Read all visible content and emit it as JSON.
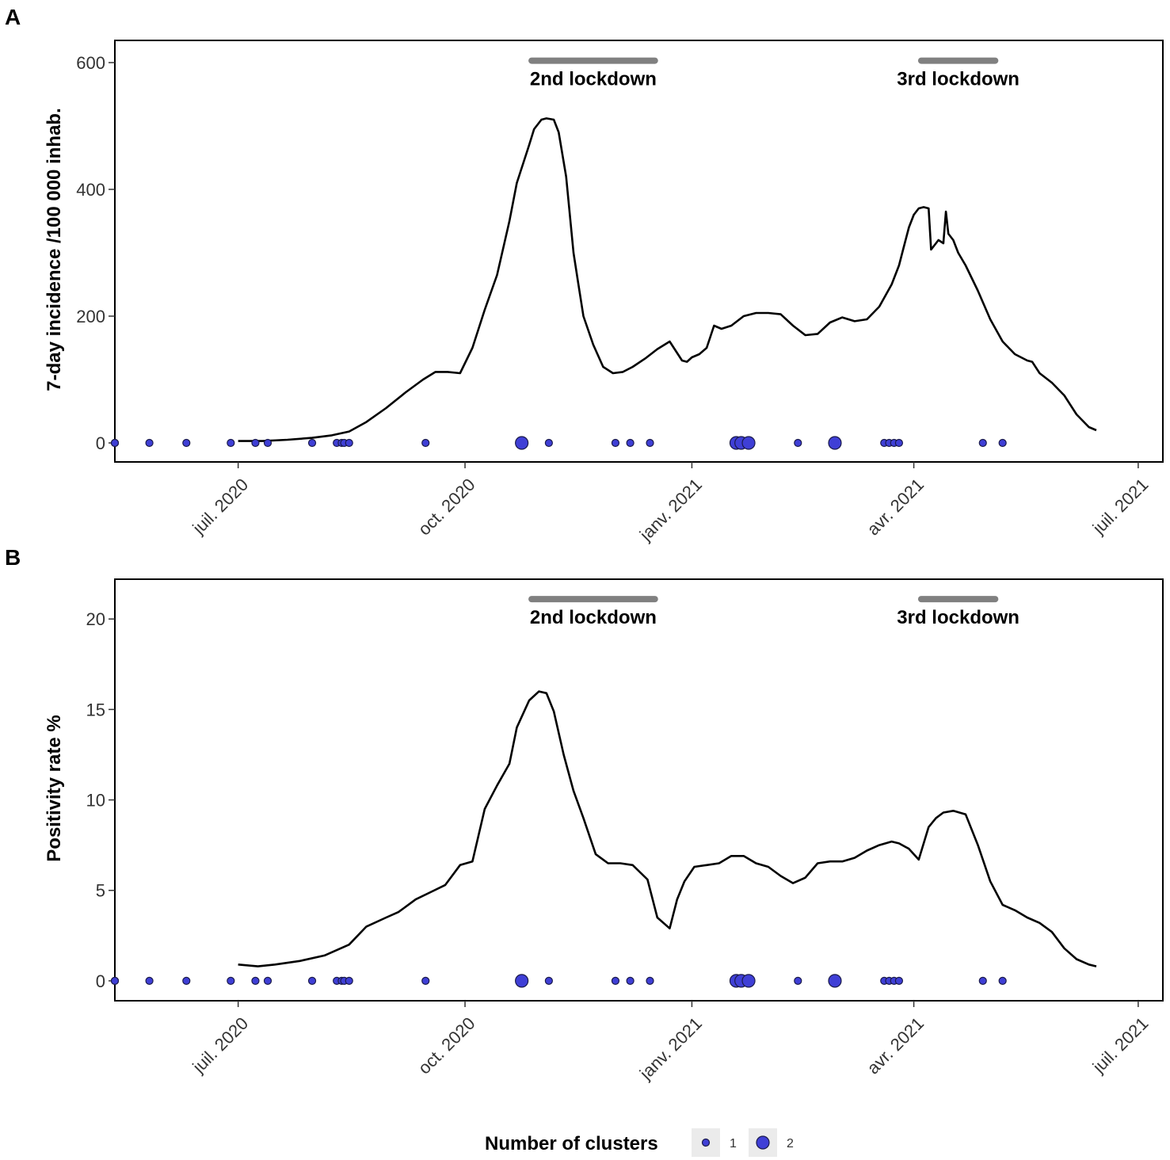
{
  "panels": {
    "a": {
      "letter": "A"
    },
    "b": {
      "letter": "B"
    }
  },
  "colors": {
    "line": "#000000",
    "cluster_fill": "#3f3fd6",
    "cluster_stroke": "#1a1a4a",
    "lockdown_bar": "#808080",
    "legend_key_bg": "#ebebeb"
  },
  "legend": {
    "title": "Number of clusters",
    "items": [
      {
        "label": "1",
        "size": 1
      },
      {
        "label": "2",
        "size": 2
      }
    ]
  },
  "chart_data": [
    {
      "type": "line",
      "panel": "A",
      "title": "",
      "xlabel": "",
      "ylabel": "7-day incidence /100 000 inhab.",
      "ylim": [
        -30,
        635
      ],
      "yticks": [
        0,
        200,
        400,
        600
      ],
      "ytick_labels": [
        "0",
        "200",
        "400",
        "600"
      ],
      "xlim_days": [
        -50,
        375
      ],
      "x_origin": "2020-06-30",
      "xticks_days": [
        0,
        92,
        184,
        274,
        365
      ],
      "xtick_labels": [
        "juil. 2020",
        "oct. 2020",
        "janv. 2021",
        "avr. 2021",
        "juil. 2021"
      ],
      "grid": false,
      "lockdowns": [
        {
          "label": "2nd lockdown",
          "start_day": 119,
          "end_day": 169,
          "y": 603
        },
        {
          "label": "3rd lockdown",
          "start_day": 277,
          "end_day": 307,
          "y": 603
        }
      ],
      "series": [
        {
          "name": "7-day incidence",
          "x": [
            0,
            10,
            20,
            30,
            38,
            45,
            52,
            60,
            68,
            75,
            80,
            85,
            90,
            95,
            100,
            105,
            110,
            113,
            118,
            120,
            123,
            125,
            128,
            130,
            133,
            136,
            138,
            140,
            144,
            148,
            152,
            156,
            160,
            165,
            170,
            175,
            180,
            182,
            184,
            187,
            190,
            193,
            196,
            200,
            205,
            210,
            215,
            220,
            225,
            230,
            235,
            240,
            245,
            250,
            255,
            260,
            265,
            268,
            270,
            272,
            274,
            276,
            278,
            280,
            281,
            282,
            284,
            286,
            287,
            288,
            290,
            292,
            295,
            300,
            305,
            310,
            315,
            320,
            322,
            325,
            330,
            335,
            340,
            345,
            348
          ],
          "y": [
            3,
            3,
            5,
            8,
            12,
            18,
            33,
            55,
            80,
            100,
            112,
            112,
            110,
            150,
            210,
            265,
            350,
            410,
            470,
            495,
            510,
            512,
            510,
            490,
            420,
            300,
            250,
            200,
            155,
            120,
            110,
            112,
            120,
            133,
            148,
            160,
            130,
            128,
            135,
            140,
            150,
            185,
            180,
            185,
            200,
            205,
            205,
            203,
            185,
            170,
            172,
            190,
            198,
            192,
            195,
            215,
            250,
            280,
            310,
            340,
            360,
            370,
            372,
            370,
            305,
            310,
            320,
            315,
            365,
            330,
            320,
            300,
            280,
            240,
            195,
            160,
            140,
            130,
            128,
            110,
            95,
            75,
            45,
            25,
            20
          ]
        },
        {
          "name": "Number of clusters",
          "kind": "points",
          "x": [
            -50,
            -50,
            -36,
            -21,
            -3,
            7,
            12,
            30,
            40,
            42,
            43,
            45,
            76,
            115,
            126,
            153,
            159,
            167,
            202,
            204,
            207,
            227,
            242,
            262,
            264,
            266,
            268,
            302,
            310
          ],
          "y": [
            0,
            0,
            0,
            0,
            0,
            0,
            0,
            0,
            0,
            0,
            0,
            0,
            0,
            0,
            0,
            0,
            0,
            0,
            0,
            0,
            0,
            0,
            0,
            0,
            0,
            0,
            0,
            0,
            0
          ],
          "size": [
            1,
            1,
            1,
            1,
            1,
            1,
            1,
            1,
            1,
            1,
            1,
            1,
            1,
            2,
            1,
            1,
            1,
            1,
            2,
            2,
            2,
            1,
            2,
            1,
            1,
            1,
            1,
            1,
            1
          ]
        }
      ]
    },
    {
      "type": "line",
      "panel": "B",
      "title": "",
      "xlabel": "",
      "ylabel": "Positivity rate %",
      "ylim": [
        -1.1,
        22.2
      ],
      "yticks": [
        0,
        5,
        10,
        15,
        20
      ],
      "ytick_labels": [
        "0",
        "5",
        "10",
        "15",
        "20"
      ],
      "xlim_days": [
        -50,
        375
      ],
      "x_origin": "2020-06-30",
      "xticks_days": [
        0,
        92,
        184,
        274,
        365
      ],
      "xtick_labels": [
        "juil. 2020",
        "oct. 2020",
        "janv. 2021",
        "avr. 2021",
        "juil. 2021"
      ],
      "grid": false,
      "lockdowns": [
        {
          "label": "2nd lockdown",
          "start_day": 119,
          "end_day": 169,
          "y": 21.1
        },
        {
          "label": "3rd lockdown",
          "start_day": 277,
          "end_day": 307,
          "y": 21.1
        }
      ],
      "series": [
        {
          "name": "Positivity rate",
          "x": [
            0,
            8,
            15,
            25,
            35,
            45,
            52,
            60,
            65,
            72,
            78,
            84,
            90,
            95,
            100,
            105,
            110,
            113,
            118,
            122,
            125,
            128,
            132,
            136,
            140,
            145,
            150,
            155,
            160,
            166,
            170,
            175,
            178,
            181,
            185,
            190,
            195,
            200,
            205,
            210,
            215,
            220,
            225,
            230,
            235,
            240,
            245,
            250,
            255,
            260,
            265,
            268,
            272,
            276,
            280,
            283,
            286,
            290,
            295,
            300,
            305,
            310,
            315,
            320,
            325,
            330,
            335,
            340,
            345,
            348
          ],
          "y": [
            0.9,
            0.8,
            0.9,
            1.1,
            1.4,
            2.0,
            3.0,
            3.5,
            3.8,
            4.5,
            4.9,
            5.3,
            6.4,
            6.6,
            9.5,
            10.8,
            12.0,
            14.0,
            15.5,
            16.0,
            15.9,
            14.9,
            12.5,
            10.5,
            9.0,
            7.0,
            6.5,
            6.5,
            6.4,
            5.6,
            3.5,
            2.9,
            4.5,
            5.5,
            6.3,
            6.4,
            6.5,
            6.9,
            6.9,
            6.5,
            6.3,
            5.8,
            5.4,
            5.7,
            6.5,
            6.6,
            6.6,
            6.8,
            7.2,
            7.5,
            7.7,
            7.6,
            7.3,
            6.7,
            8.5,
            9.0,
            9.3,
            9.4,
            9.2,
            7.5,
            5.5,
            4.2,
            3.9,
            3.5,
            3.2,
            2.7,
            1.8,
            1.2,
            0.9,
            0.8
          ]
        },
        {
          "name": "Number of clusters",
          "kind": "points",
          "x": [
            -50,
            -50,
            -36,
            -21,
            -3,
            7,
            12,
            30,
            40,
            42,
            43,
            45,
            76,
            115,
            126,
            153,
            159,
            167,
            202,
            204,
            207,
            227,
            242,
            262,
            264,
            266,
            268,
            302,
            310
          ],
          "y": [
            0,
            0,
            0,
            0,
            0,
            0,
            0,
            0,
            0,
            0,
            0,
            0,
            0,
            0,
            0,
            0,
            0,
            0,
            0,
            0,
            0,
            0,
            0,
            0,
            0,
            0,
            0,
            0,
            0
          ],
          "size": [
            1,
            1,
            1,
            1,
            1,
            1,
            1,
            1,
            1,
            1,
            1,
            1,
            1,
            2,
            1,
            1,
            1,
            1,
            2,
            2,
            2,
            1,
            2,
            1,
            1,
            1,
            1,
            1,
            1
          ]
        }
      ]
    }
  ]
}
